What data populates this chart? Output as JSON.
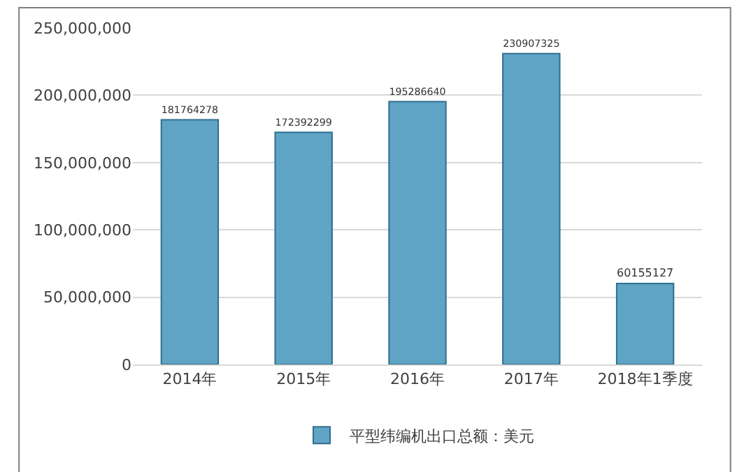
{
  "chart_data": {
    "type": "bar",
    "categories": [
      "2014年",
      "2015年",
      "2016年",
      "2017年",
      "2018年1季度"
    ],
    "series": [
      {
        "name": "平型纬编机出口总额：美元",
        "color": "#5fa4c4",
        "values": [
          181764278,
          172392299,
          195286640,
          230907325,
          60155127
        ]
      }
    ],
    "ylim": [
      0,
      250000000
    ],
    "yticks": [
      0,
      {
        "value": 50000000,
        "label": "50,000,000"
      },
      {
        "value": 100000000,
        "label": "100,000,000"
      },
      {
        "value": 150000000,
        "label": "150,000,000"
      },
      {
        "value": 200000000,
        "label": "200,000,000"
      },
      {
        "value": 250000000,
        "label": "250,000,000"
      }
    ],
    "grid": "y",
    "legend": "bottom",
    "data_labels": true
  }
}
